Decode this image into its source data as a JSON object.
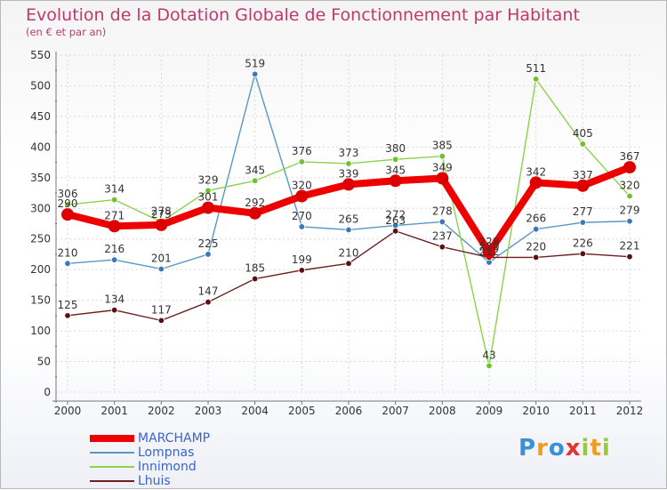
{
  "title": "Evolution de la Dotation Globale de Fonctionnement par Habitant",
  "subtitle": "(en € et par an)",
  "brand": {
    "letters": [
      "P",
      "r",
      "o",
      "x",
      "i",
      "t",
      "i"
    ],
    "colors": [
      "#3a8fd6",
      "#f29c1f",
      "#3a8fd6",
      "#e8312f",
      "#9ac93b",
      "#f29c1f",
      "#9ac93b"
    ]
  },
  "chart_data": {
    "type": "line",
    "title": "Evolution de la Dotation Globale de Fonctionnement par Habitant",
    "ylabel": "(en € et par an)",
    "xlabel": "",
    "x": [
      "2000",
      "2001",
      "2002",
      "2003",
      "2004",
      "2005",
      "2006",
      "2007",
      "2008",
      "2009",
      "2010",
      "2011",
      "2012"
    ],
    "ylim": [
      0,
      550
    ],
    "yticks": [
      "0",
      "50",
      "100",
      "150",
      "200",
      "250",
      "300",
      "350",
      "400",
      "450",
      "500",
      "550"
    ],
    "grid": true,
    "series": [
      {
        "name": "MARCHAMP",
        "color": "#ee0000",
        "values": [
          290,
          271,
          273,
          301,
          292,
          320,
          339,
          345,
          349,
          228,
          342,
          337,
          367
        ]
      },
      {
        "name": "Lompnas",
        "color": "#5b96c8",
        "values": [
          210,
          216,
          201,
          225,
          519,
          270,
          265,
          272,
          278,
          212,
          266,
          277,
          279
        ]
      },
      {
        "name": "Innimond",
        "color": "#8cd24a",
        "values": [
          306,
          314,
          278,
          329,
          345,
          376,
          373,
          380,
          385,
          43,
          511,
          405,
          320
        ]
      },
      {
        "name": "Lhuis",
        "color": "#6b1f1f",
        "values": [
          125,
          134,
          117,
          147,
          185,
          199,
          210,
          263,
          237,
          220,
          220,
          226,
          221
        ]
      }
    ]
  }
}
